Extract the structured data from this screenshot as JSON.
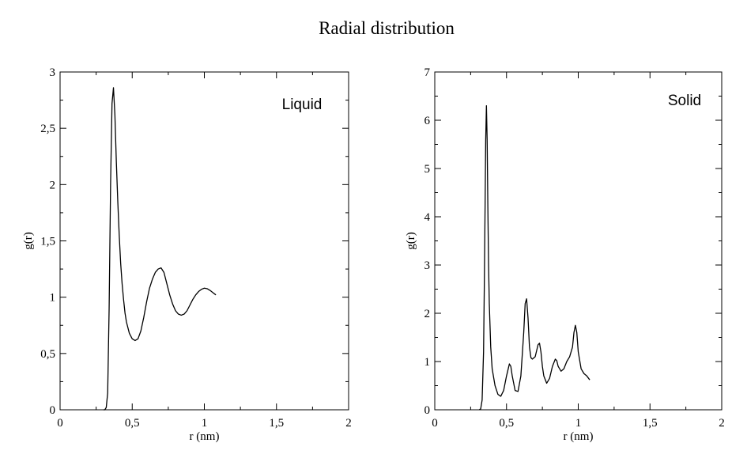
{
  "figure": {
    "title": "Radial distribution"
  },
  "chart_data": [
    {
      "type": "line",
      "annotation": "Liquid",
      "xlabel": "r (nm)",
      "ylabel": "g(r)",
      "xlim": [
        0,
        2
      ],
      "ylim": [
        0,
        3
      ],
      "xticks": [
        0,
        0.5,
        1,
        1.5,
        2
      ],
      "yticks": [
        0,
        0.5,
        1,
        1.5,
        2,
        2.5,
        3
      ],
      "xtick_labels": [
        "0",
        "0,5",
        "1",
        "1,5",
        "2"
      ],
      "ytick_labels": [
        "0",
        "0,5",
        "1",
        "1,5",
        "2",
        "2,5",
        "3"
      ],
      "grid": false,
      "series": [
        {
          "x": [
            0.3,
            0.31,
            0.32,
            0.33,
            0.34,
            0.35,
            0.36,
            0.37,
            0.38,
            0.39,
            0.4,
            0.41,
            0.42,
            0.43,
            0.44,
            0.45,
            0.46,
            0.48,
            0.5,
            0.52,
            0.54,
            0.56,
            0.58,
            0.6,
            0.62,
            0.64,
            0.66,
            0.68,
            0.7,
            0.72,
            0.74,
            0.76,
            0.78,
            0.8,
            0.82,
            0.84,
            0.86,
            0.88,
            0.9,
            0.92,
            0.94,
            0.96,
            0.98,
            1.0,
            1.02,
            1.04,
            1.06,
            1.08
          ],
          "values": [
            0.0,
            0.0,
            0.02,
            0.15,
            0.9,
            2.0,
            2.72,
            2.86,
            2.62,
            2.2,
            1.85,
            1.55,
            1.3,
            1.12,
            0.98,
            0.86,
            0.78,
            0.68,
            0.63,
            0.615,
            0.63,
            0.7,
            0.82,
            0.96,
            1.08,
            1.16,
            1.22,
            1.25,
            1.26,
            1.22,
            1.12,
            1.02,
            0.94,
            0.88,
            0.85,
            0.84,
            0.85,
            0.88,
            0.93,
            0.98,
            1.02,
            1.05,
            1.07,
            1.08,
            1.075,
            1.06,
            1.04,
            1.02
          ]
        }
      ]
    },
    {
      "type": "line",
      "annotation": "Solid",
      "xlabel": "r (nm)",
      "ylabel": "g(r)",
      "xlim": [
        0,
        2
      ],
      "ylim": [
        0,
        7
      ],
      "xticks": [
        0,
        0.5,
        1,
        1.5,
        2
      ],
      "yticks": [
        0,
        1,
        2,
        3,
        4,
        5,
        6,
        7
      ],
      "xtick_labels": [
        "0",
        "0,5",
        "1",
        "1,5",
        "2"
      ],
      "ytick_labels": [
        "0",
        "1",
        "2",
        "3",
        "4",
        "5",
        "6",
        "7"
      ],
      "grid": false,
      "series": [
        {
          "x": [
            0.31,
            0.32,
            0.33,
            0.34,
            0.345,
            0.35,
            0.355,
            0.36,
            0.365,
            0.37,
            0.375,
            0.38,
            0.39,
            0.4,
            0.42,
            0.44,
            0.46,
            0.48,
            0.5,
            0.52,
            0.53,
            0.54,
            0.56,
            0.58,
            0.6,
            0.62,
            0.63,
            0.64,
            0.65,
            0.66,
            0.67,
            0.68,
            0.7,
            0.72,
            0.73,
            0.74,
            0.75,
            0.76,
            0.78,
            0.8,
            0.82,
            0.84,
            0.85,
            0.86,
            0.88,
            0.9,
            0.92,
            0.94,
            0.96,
            0.97,
            0.98,
            0.99,
            1.0,
            1.02,
            1.04,
            1.06,
            1.08
          ],
          "values": [
            0.0,
            0.02,
            0.2,
            1.2,
            2.5,
            4.0,
            5.6,
            6.3,
            5.6,
            4.2,
            3.0,
            2.2,
            1.3,
            0.85,
            0.5,
            0.32,
            0.28,
            0.4,
            0.7,
            0.95,
            0.9,
            0.7,
            0.4,
            0.38,
            0.7,
            1.6,
            2.2,
            2.3,
            1.9,
            1.3,
            1.08,
            1.05,
            1.1,
            1.35,
            1.38,
            1.2,
            0.9,
            0.7,
            0.55,
            0.65,
            0.9,
            1.05,
            1.02,
            0.9,
            0.8,
            0.85,
            1.0,
            1.1,
            1.3,
            1.6,
            1.75,
            1.6,
            1.2,
            0.85,
            0.75,
            0.7,
            0.62
          ]
        }
      ]
    }
  ]
}
